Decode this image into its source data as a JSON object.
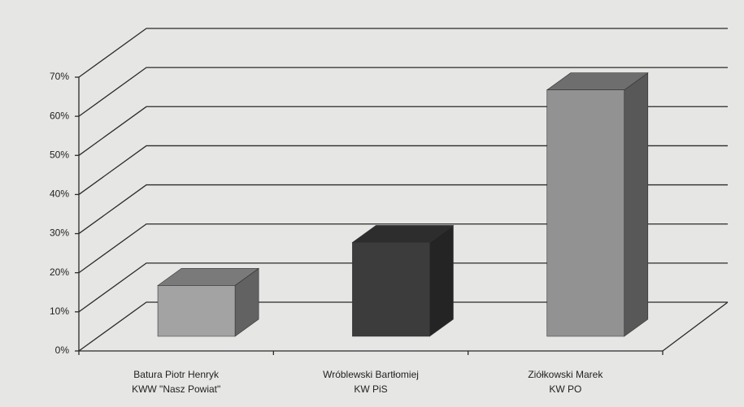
{
  "chart_data": {
    "type": "bar",
    "categories": [
      [
        "Batura Piotr Henryk",
        "KWW \"Nasz Powiat\""
      ],
      [
        "Wróblewski Bartłomiej",
        "KW PiS"
      ],
      [
        "Ziółkowski Marek",
        "KW PO"
      ]
    ],
    "values": [
      13,
      24,
      63
    ],
    "colors": [
      "#a3a3a3",
      "#3c3c3c",
      "#929292"
    ],
    "ylim": [
      0,
      70
    ],
    "yticks": [
      {
        "value": 0,
        "label": "0%"
      },
      {
        "value": 10,
        "label": "10%"
      },
      {
        "value": 20,
        "label": "20%"
      },
      {
        "value": 30,
        "label": "30%"
      },
      {
        "value": 40,
        "label": "40%"
      },
      {
        "value": 50,
        "label": "50%"
      },
      {
        "value": 60,
        "label": "60%"
      },
      {
        "value": 70,
        "label": "70%"
      }
    ],
    "grid": true
  }
}
